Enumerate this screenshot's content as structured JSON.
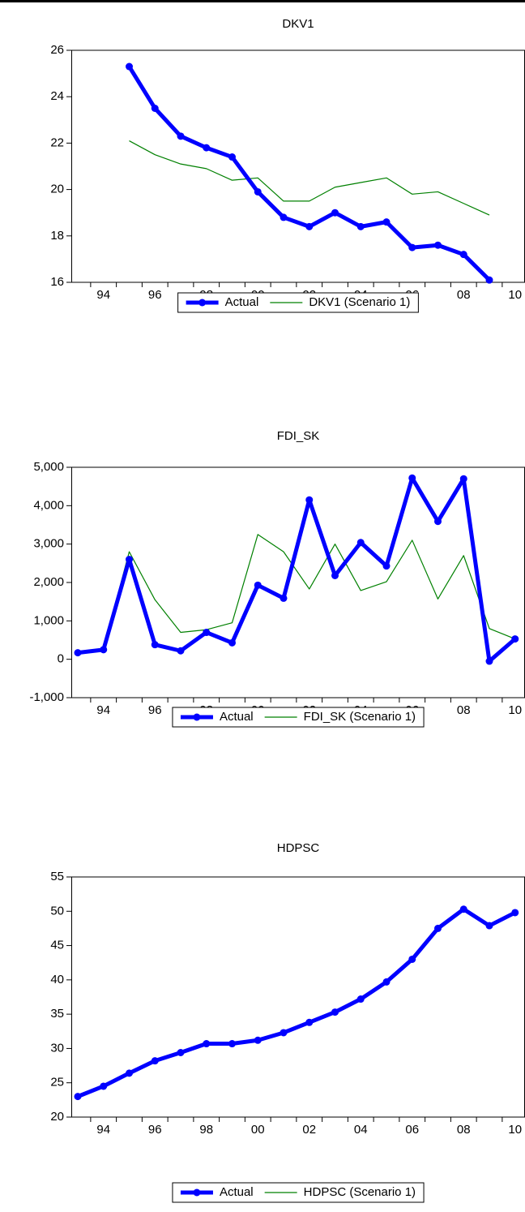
{
  "chart_data": [
    {
      "type": "line",
      "title": "DKV1",
      "categories": [
        null,
        "94",
        null,
        "96",
        null,
        "98",
        null,
        "00",
        null,
        "02",
        null,
        "04",
        null,
        "06",
        null,
        "08",
        null,
        "10"
      ],
      "series": [
        {
          "name": "Actual",
          "color": "#0000ff",
          "markers": true,
          "values": [
            null,
            null,
            25.3,
            23.5,
            22.3,
            21.8,
            21.4,
            19.9,
            18.8,
            18.4,
            19.0,
            18.4,
            18.6,
            17.5,
            17.6,
            17.2,
            16.1,
            null
          ]
        },
        {
          "name": "DKV1 (Scenario 1)",
          "color": "#008000",
          "markers": false,
          "values": [
            null,
            null,
            22.1,
            21.5,
            21.1,
            20.9,
            20.4,
            20.5,
            19.5,
            19.5,
            20.1,
            20.3,
            20.5,
            19.8,
            19.9,
            19.4,
            18.9,
            null
          ]
        }
      ],
      "ylim": [
        16,
        26
      ],
      "yticks": [
        16,
        18,
        20,
        22,
        24,
        26
      ]
    },
    {
      "type": "line",
      "title": "FDI_SK",
      "categories": [
        null,
        "94",
        null,
        "96",
        null,
        "98",
        null,
        "00",
        null,
        "02",
        null,
        "04",
        null,
        "06",
        null,
        "08",
        null,
        "10"
      ],
      "series": [
        {
          "name": "Actual",
          "color": "#0000ff",
          "markers": true,
          "values": [
            170,
            250,
            2600,
            380,
            220,
            700,
            430,
            1930,
            1590,
            4150,
            2180,
            3040,
            2430,
            4720,
            3590,
            4700,
            -50,
            530
          ]
        },
        {
          "name": "FDI_SK (Scenario 1)",
          "color": "#008000",
          "markers": false,
          "values": [
            170,
            270,
            2800,
            1550,
            700,
            770,
            950,
            3250,
            2800,
            1830,
            3000,
            1790,
            2020,
            3100,
            1570,
            2700,
            800,
            530
          ]
        }
      ],
      "ylim": [
        -1000,
        5000
      ],
      "yticks": [
        {
          "value": -1000,
          "label": "-1,000"
        },
        0,
        {
          "value": 1000,
          "label": "1,000"
        },
        {
          "value": 2000,
          "label": "2,000"
        },
        {
          "value": 3000,
          "label": "3,000"
        },
        {
          "value": 4000,
          "label": "4,000"
        },
        {
          "value": 5000,
          "label": "5,000"
        }
      ]
    },
    {
      "type": "line",
      "title": "HDPSC",
      "categories": [
        null,
        "94",
        null,
        "96",
        null,
        "98",
        null,
        "00",
        null,
        "02",
        null,
        "04",
        null,
        "06",
        null,
        "08",
        null,
        "10"
      ],
      "series": [
        {
          "name": "Actual",
          "color": "#0000ff",
          "markers": true,
          "values": [
            23.0,
            24.5,
            26.4,
            28.2,
            29.4,
            30.7,
            30.7,
            31.2,
            32.3,
            33.8,
            35.3,
            37.2,
            39.7,
            43.0,
            47.5,
            50.3,
            47.9,
            49.8
          ]
        },
        {
          "name": "HDPSC (Scenario 1)",
          "color": "#008000",
          "markers": false,
          "values": [
            23.0,
            24.5,
            26.4,
            28.2,
            29.4,
            30.7,
            30.7,
            31.2,
            32.3,
            33.8,
            35.3,
            37.2,
            39.7,
            43.0,
            47.5,
            50.3,
            47.9,
            49.8
          ]
        }
      ],
      "ylim": [
        20,
        55
      ],
      "yticks": [
        20,
        25,
        30,
        35,
        40,
        45,
        50,
        55
      ]
    }
  ]
}
